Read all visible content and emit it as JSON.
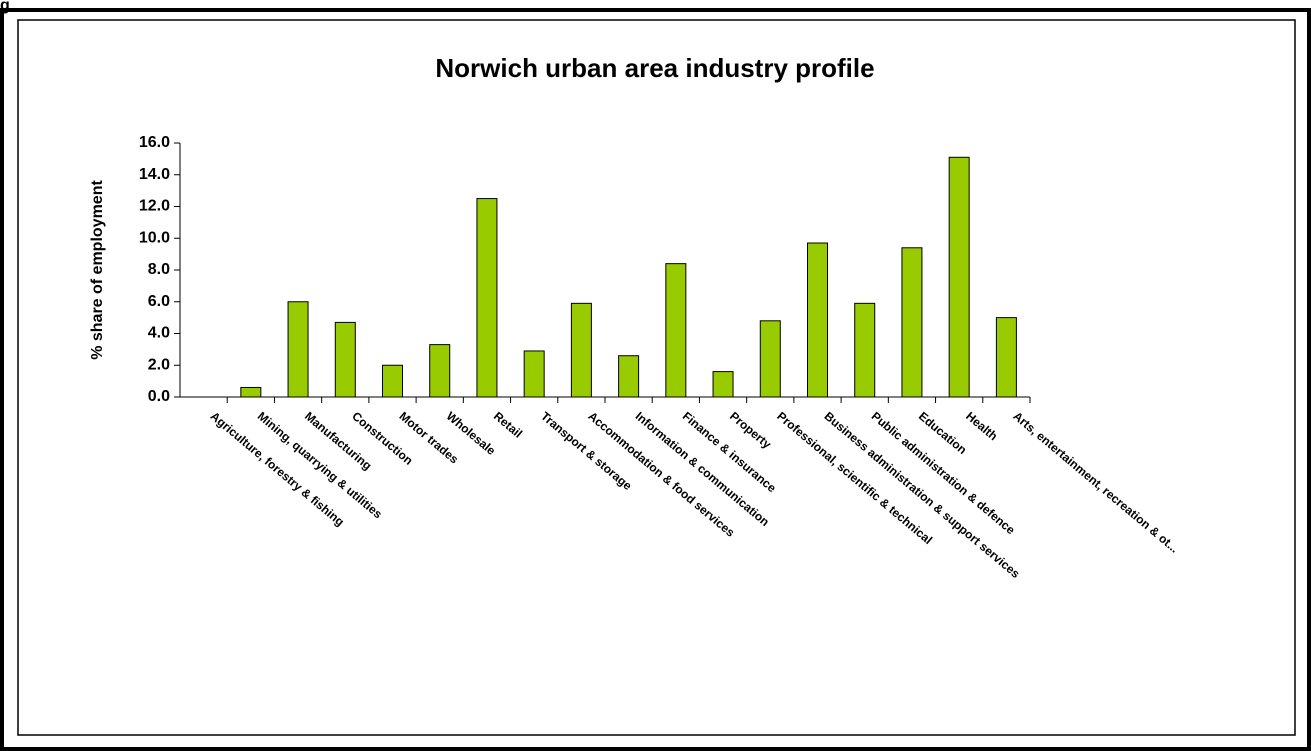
{
  "figure_label": "g",
  "chart_data": {
    "type": "bar",
    "title": "Norwich urban area industry profile",
    "y_label": "% share of employment",
    "categories": [
      "Agriculture, forestry & fishing",
      "Mining, quarrying & utilities",
      "Manufacturing",
      "Construction",
      "Motor trades",
      "Wholesale",
      "Retail",
      "Transport & storage",
      "Accommodation & food services",
      "Information & communication",
      "Finance & insurance",
      "Property",
      "Professional, scientific & technical",
      "Business administration & support services",
      "Public administration & defence",
      "Education",
      "Health",
      "Arts, entertainment, recreation & ot..."
    ],
    "values": [
      0,
      0.6,
      6.0,
      4.7,
      2.0,
      3.3,
      12.5,
      2.9,
      5.9,
      2.6,
      8.4,
      1.6,
      4.8,
      9.7,
      5.9,
      9.4,
      15.1,
      5.0
    ],
    "color": "#99cc00",
    "ylim": [
      0,
      16
    ],
    "yticks": [
      {
        "value": 0,
        "label": "0.0"
      },
      {
        "value": 2,
        "label": "2.0"
      },
      {
        "value": 4,
        "label": "4.0"
      },
      {
        "value": 6,
        "label": "6.0"
      },
      {
        "value": 8,
        "label": "8.0"
      },
      {
        "value": 10,
        "label": "10.0"
      },
      {
        "value": 12,
        "label": "12.0"
      },
      {
        "value": 14,
        "label": "14.0"
      },
      {
        "value": 16,
        "label": "16.0"
      }
    ]
  }
}
